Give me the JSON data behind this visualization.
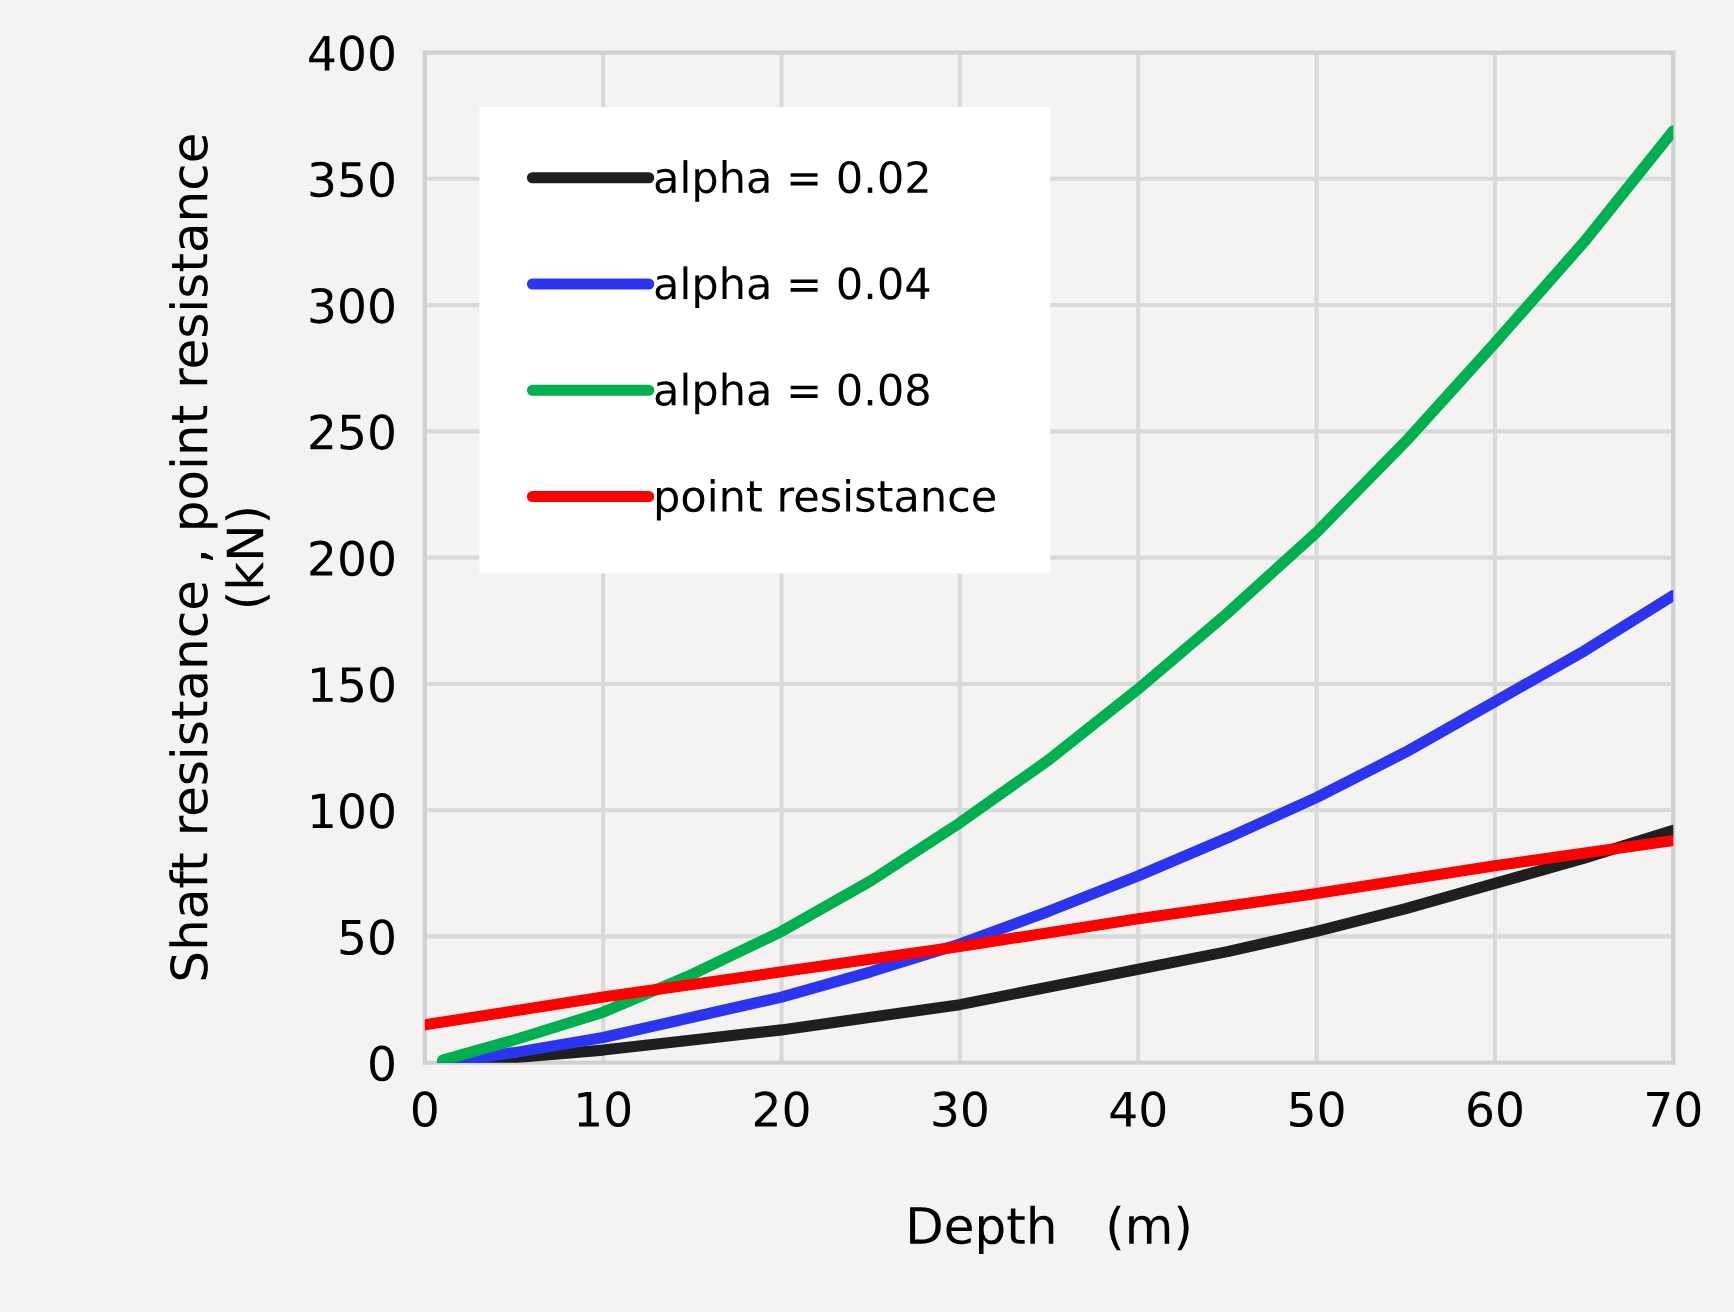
{
  "chart_data": {
    "type": "line",
    "xlabel": "Depth   (m)",
    "ylabel": "Shaft resistance , point resistance\n(kN)",
    "xlim": [
      0,
      70
    ],
    "xticks": [
      0,
      10,
      20,
      30,
      40,
      50,
      60,
      70
    ],
    "ylim": [
      0,
      400
    ],
    "yticks": [
      0,
      50,
      100,
      150,
      200,
      250,
      300,
      350,
      400
    ],
    "grid": true,
    "legend": "top left",
    "marker": "none",
    "line_style": "solid",
    "series": [
      {
        "name": "alpha = 0.02",
        "color": "#1f1f1f",
        "x": [
          1,
          5,
          10,
          15,
          20,
          25,
          30,
          35,
          40,
          45,
          50,
          55,
          60,
          65,
          70
        ],
        "values": [
          0,
          2,
          5,
          9,
          13,
          18,
          23,
          30,
          37,
          44,
          52,
          61,
          71,
          81,
          92
        ]
      },
      {
        "name": "alpha = 0.04",
        "color": "#2b35f0",
        "x": [
          1,
          5,
          10,
          15,
          20,
          25,
          30,
          35,
          40,
          45,
          50,
          55,
          60,
          65,
          70
        ],
        "values": [
          0,
          4,
          10,
          18,
          26,
          36,
          47,
          60,
          74,
          89,
          105,
          123,
          143,
          163,
          185
        ]
      },
      {
        "name": "alpha = 0.08",
        "color": "#00b050",
        "x": [
          1,
          5,
          10,
          15,
          20,
          25,
          30,
          35,
          40,
          45,
          50,
          55,
          60,
          65,
          70
        ],
        "values": [
          1,
          9,
          20,
          35,
          52,
          72,
          95,
          120,
          148,
          178,
          210,
          246,
          285,
          325,
          369
        ]
      },
      {
        "name": "point resistance",
        "color": "#ff0000",
        "x": [
          0,
          10,
          20,
          30,
          40,
          50,
          60,
          70
        ],
        "values": [
          15,
          26,
          36,
          46,
          57,
          67,
          78,
          88
        ]
      }
    ]
  }
}
